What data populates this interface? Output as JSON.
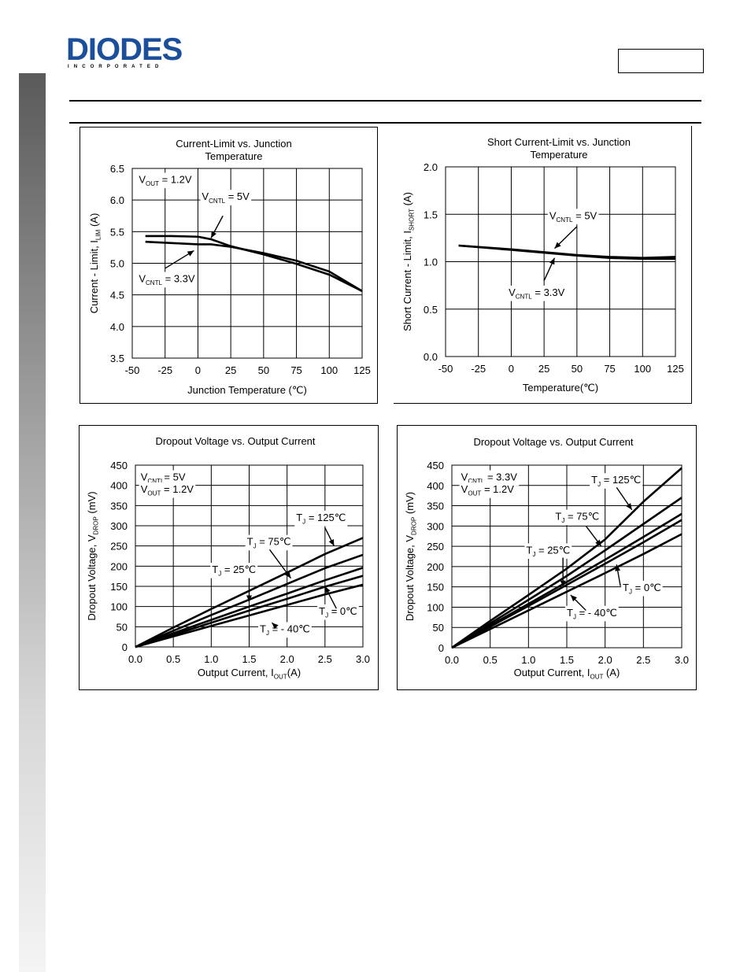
{
  "header": {
    "logo_text": "DIODES",
    "logo_subtext": "INCORPORATED",
    "part_number": ""
  },
  "chart_data": [
    {
      "id": "c1",
      "type": "line",
      "title": "Current-Limit vs. Junction Temperature",
      "title_lines": [
        "Current-Limit vs. Junction",
        "Temperature"
      ],
      "xlabel": "Junction Temperature (℃)",
      "ylabel": "Current - Limit, I",
      "ylabel_sub": "LIM",
      "ylabel_suffix": " (A)",
      "xlim": [
        -50,
        125
      ],
      "ylim": [
        3.5,
        6.5
      ],
      "xticks": [
        -50,
        -25,
        0,
        25,
        50,
        75,
        100,
        125
      ],
      "yticks": [
        3.5,
        4.0,
        4.5,
        5.0,
        5.5,
        6.0,
        6.5
      ],
      "xtick_labels": [
        "-50",
        "-25",
        "0",
        "25",
        "50",
        "75",
        "100",
        "125"
      ],
      "ytick_labels": [
        "3.5",
        "4.0",
        "4.5",
        "5.0",
        "5.5",
        "6.0",
        "6.5"
      ],
      "series": [
        {
          "name": "VCNTL = 5V",
          "x": [
            -40,
            -20,
            0,
            10,
            25,
            50,
            75,
            100,
            125
          ],
          "y": [
            5.43,
            5.43,
            5.42,
            5.38,
            5.27,
            5.14,
            4.99,
            4.82,
            4.56
          ]
        },
        {
          "name": "VCNTL = 3.3V",
          "x": [
            -40,
            -20,
            0,
            10,
            25,
            50,
            75,
            100,
            125
          ],
          "y": [
            5.34,
            5.32,
            5.3,
            5.3,
            5.26,
            5.16,
            5.04,
            4.87,
            4.56
          ]
        }
      ],
      "annotations": [
        {
          "id": "a1",
          "main": "V",
          "sub": "OUT",
          "rest": " = 1.2V",
          "data_x": -45,
          "data_y": 6.27,
          "arrow": null
        },
        {
          "id": "a2",
          "main": "V",
          "sub": "CNTL",
          "rest": " = 5V",
          "data_x": 3,
          "data_y": 6.0,
          "arrow": [
            [
              19,
              5.75
            ],
            [
              10,
              5.4
            ]
          ]
        },
        {
          "id": "a3",
          "main": "V",
          "sub": "CNTL",
          "rest": " = 3.3V",
          "data_x": -45,
          "data_y": 4.7,
          "arrow": [
            [
              -25,
              4.92
            ],
            [
              -3,
              5.2
            ]
          ]
        }
      ]
    },
    {
      "id": "c2",
      "type": "line",
      "title": "Short Current-Limit vs. Junction Temperature",
      "title_lines": [
        "Short Current-Limit vs. Junction",
        "Temperature"
      ],
      "xlabel": "Temperature(℃)",
      "ylabel": "Short Current - Limit, I",
      "ylabel_sub": "SHORT",
      "ylabel_suffix": " (A)",
      "xlim": [
        -50,
        125
      ],
      "ylim": [
        0.0,
        2.0
      ],
      "xticks": [
        -50,
        -25,
        0,
        25,
        50,
        75,
        100,
        125
      ],
      "yticks": [
        0.0,
        0.5,
        1.0,
        1.5,
        2.0
      ],
      "xtick_labels": [
        "-50",
        "-25",
        "0",
        "25",
        "50",
        "75",
        "100",
        "125"
      ],
      "ytick_labels": [
        "0.0",
        "0.5",
        "1.0",
        "1.5",
        "2.0"
      ],
      "series": [
        {
          "name": "VCNTL = 5V",
          "x": [
            -40,
            0,
            25,
            50,
            75,
            100,
            125
          ],
          "y": [
            1.17,
            1.13,
            1.1,
            1.07,
            1.05,
            1.04,
            1.05
          ]
        },
        {
          "name": "VCNTL = 3.3V",
          "x": [
            -40,
            0,
            25,
            50,
            75,
            100,
            125
          ],
          "y": [
            1.17,
            1.125,
            1.095,
            1.065,
            1.04,
            1.03,
            1.03
          ]
        }
      ],
      "annotations": [
        {
          "id": "b1",
          "main": "V",
          "sub": "CNTL",
          "rest": " = 5V",
          "data_x": 29,
          "data_y": 1.45,
          "arrow": [
            [
              50,
              1.37
            ],
            [
              33,
              1.14
            ]
          ]
        },
        {
          "id": "b2",
          "main": "V",
          "sub": "CNTL",
          "rest": " = 3.3V",
          "data_x": -2,
          "data_y": 0.64,
          "arrow": [
            [
              25,
              0.8
            ],
            [
              33,
              1.04
            ]
          ]
        }
      ]
    },
    {
      "id": "c3",
      "type": "line",
      "title": "Dropout Voltage vs. Output Current",
      "title_lines": [
        "Dropout Voltage vs. Output Current"
      ],
      "xlabel": "Output Current, I",
      "xlabel_sub": "OUT",
      "xlabel_suffix": "(A)",
      "ylabel": "Dropout Voltage, V",
      "ylabel_sub": "DROP",
      "ylabel_suffix": " (mV)",
      "xlim": [
        0.0,
        3.0
      ],
      "ylim": [
        0,
        450
      ],
      "xticks": [
        0.0,
        0.5,
        1.0,
        1.5,
        2.0,
        2.5,
        3.0
      ],
      "yticks": [
        0,
        50,
        100,
        150,
        200,
        250,
        300,
        350,
        400,
        450
      ],
      "xtick_labels": [
        "0.0",
        "0.5",
        "1.0",
        "1.5",
        "2.0",
        "2.5",
        "3.0"
      ],
      "ytick_labels": [
        "0",
        "50",
        "100",
        "150",
        "200",
        "250",
        "300",
        "350",
        "400",
        "450"
      ],
      "series": [
        {
          "name": "TJ = 125℃",
          "x": [
            0,
            0.5,
            1.0,
            1.5,
            2.0,
            2.5,
            3.0
          ],
          "y": [
            0,
            48,
            94,
            139,
            184,
            230,
            270
          ]
        },
        {
          "name": "TJ = 75℃",
          "x": [
            0,
            0.5,
            1.0,
            1.5,
            2.0,
            2.5,
            3.0
          ],
          "y": [
            0,
            40,
            79,
            117,
            156,
            195,
            228
          ]
        },
        {
          "name": "TJ = 25℃",
          "x": [
            0,
            0.5,
            1.0,
            1.5,
            2.0,
            2.5,
            3.0
          ],
          "y": [
            0,
            34,
            67,
            100,
            132,
            165,
            196
          ]
        },
        {
          "name": "TJ = 0℃",
          "x": [
            0,
            0.5,
            1.0,
            1.5,
            2.0,
            2.5,
            3.0
          ],
          "y": [
            0,
            30,
            60,
            90,
            119,
            149,
            176
          ]
        },
        {
          "name": "TJ = -40℃",
          "x": [
            0,
            0.5,
            1.0,
            1.5,
            2.0,
            2.5,
            3.0
          ],
          "y": [
            0,
            26,
            52,
            78,
            104,
            130,
            154
          ]
        }
      ],
      "annotations": [
        {
          "id": "d0a",
          "main": "V",
          "sub": "CNTL",
          "rest": "= 5V",
          "data_x": 0.07,
          "data_y": 412,
          "arrow": null
        },
        {
          "id": "d0b",
          "main": "V",
          "sub": "OUT",
          "rest": " = 1.2V",
          "data_x": 0.07,
          "data_y": 382,
          "arrow": null
        },
        {
          "id": "d1",
          "main": "T",
          "sub": "J",
          "rest": " = 125℃",
          "data_x": 2.12,
          "data_y": 312,
          "arrow": [
            [
              2.5,
              295
            ],
            [
              2.62,
              250
            ]
          ]
        },
        {
          "id": "d2",
          "main": "T",
          "sub": "J",
          "rest": " = 75℃",
          "data_x": 1.47,
          "data_y": 252,
          "arrow": [
            [
              1.77,
              241
            ],
            [
              2.05,
              170
            ]
          ]
        },
        {
          "id": "d3",
          "main": "T",
          "sub": "J",
          "rest": " = 25℃",
          "data_x": 1.01,
          "data_y": 183,
          "arrow": [
            [
              1.5,
              170
            ],
            [
              1.5,
              112
            ]
          ]
        },
        {
          "id": "d4",
          "main": "T",
          "sub": "J",
          "rest": " = 0℃",
          "data_x": 2.42,
          "data_y": 80,
          "arrow": [
            [
              2.65,
              95
            ],
            [
              2.5,
              150
            ]
          ]
        },
        {
          "id": "d5",
          "main": "T",
          "sub": "J",
          "rest": " = - 40℃",
          "data_x": 1.64,
          "data_y": 36,
          "arrow": [
            [
              1.85,
              51
            ],
            [
              1.8,
              60
            ]
          ]
        }
      ]
    },
    {
      "id": "c4",
      "type": "line",
      "title": "Dropout Voltage vs. Output Current",
      "title_lines": [
        "Dropout Voltage vs. Output Current"
      ],
      "xlabel": "Output Current, I",
      "xlabel_sub": "OUT",
      "xlabel_suffix": " (A)",
      "ylabel": "Dropout Voltage, V",
      "ylabel_sub": "DROP",
      "ylabel_suffix": " (mV)",
      "xlim": [
        0.0,
        3.0
      ],
      "ylim": [
        0,
        450
      ],
      "xticks": [
        0.0,
        0.5,
        1.0,
        1.5,
        2.0,
        2.5,
        3.0
      ],
      "yticks": [
        0,
        50,
        100,
        150,
        200,
        250,
        300,
        350,
        400,
        450
      ],
      "xtick_labels": [
        "0.0",
        "0.5",
        "1.0",
        "1.5",
        "2.0",
        "2.5",
        "3.0"
      ],
      "ytick_labels": [
        "0",
        "50",
        "100",
        "150",
        "200",
        "250",
        "300",
        "350",
        "400",
        "450"
      ],
      "series": [
        {
          "name": "TJ = 125℃",
          "x": [
            0,
            0.5,
            1.0,
            1.5,
            2.0,
            2.5,
            3.0
          ],
          "y": [
            0,
            66,
            130,
            195,
            267,
            360,
            443
          ]
        },
        {
          "name": "TJ = 75℃",
          "x": [
            0,
            0.5,
            1.0,
            1.5,
            2.0,
            2.5,
            3.0
          ],
          "y": [
            0,
            60,
            118,
            177,
            240,
            305,
            370
          ]
        },
        {
          "name": "TJ = 25℃",
          "x": [
            0,
            0.5,
            1.0,
            1.5,
            2.0,
            2.5,
            3.0
          ],
          "y": [
            0,
            55,
            108,
            162,
            217,
            273,
            330
          ]
        },
        {
          "name": "TJ = 0℃",
          "x": [
            0,
            0.5,
            1.0,
            1.5,
            2.0,
            2.5,
            3.0
          ],
          "y": [
            0,
            52,
            103,
            155,
            207,
            260,
            315
          ]
        },
        {
          "name": "TJ = -40℃",
          "x": [
            0,
            0.5,
            1.0,
            1.5,
            2.0,
            2.5,
            3.0
          ],
          "y": [
            0,
            46,
            92,
            138,
            184,
            231,
            280
          ]
        }
      ],
      "annotations": [
        {
          "id": "e0a",
          "main": "V",
          "sub": "CNTL",
          "rest": " = 3.3V",
          "data_x": 0.12,
          "data_y": 412,
          "arrow": null
        },
        {
          "id": "e0b",
          "main": "V",
          "sub": "OUT",
          "rest": " = 1.2V",
          "data_x": 0.12,
          "data_y": 382,
          "arrow": null
        },
        {
          "id": "e1",
          "main": "T",
          "sub": "J",
          "rest": " = 125℃",
          "data_x": 1.82,
          "data_y": 405,
          "arrow": [
            [
              2.15,
              395
            ],
            [
              2.35,
              340
            ]
          ]
        },
        {
          "id": "e2",
          "main": "T",
          "sub": "J",
          "rest": " = 75℃",
          "data_x": 1.35,
          "data_y": 315,
          "arrow": [
            [
              1.75,
              300
            ],
            [
              1.95,
              250
            ]
          ]
        },
        {
          "id": "e3",
          "main": "T",
          "sub": "J",
          "rest": " = 25℃",
          "data_x": 0.97,
          "data_y": 232,
          "arrow": [
            [
              1.45,
              222
            ],
            [
              1.45,
              150
            ]
          ]
        },
        {
          "id": "e4",
          "main": "T",
          "sub": "J",
          "rest": " = 0℃",
          "data_x": 2.23,
          "data_y": 140,
          "arrow": [
            [
              2.2,
              152
            ],
            [
              2.15,
              205
            ]
          ]
        },
        {
          "id": "e5",
          "main": "T",
          "sub": "J",
          "rest": " = - 40℃",
          "data_x": 1.5,
          "data_y": 78,
          "arrow": [
            [
              1.75,
              92
            ],
            [
              1.55,
              130
            ]
          ]
        }
      ]
    }
  ]
}
